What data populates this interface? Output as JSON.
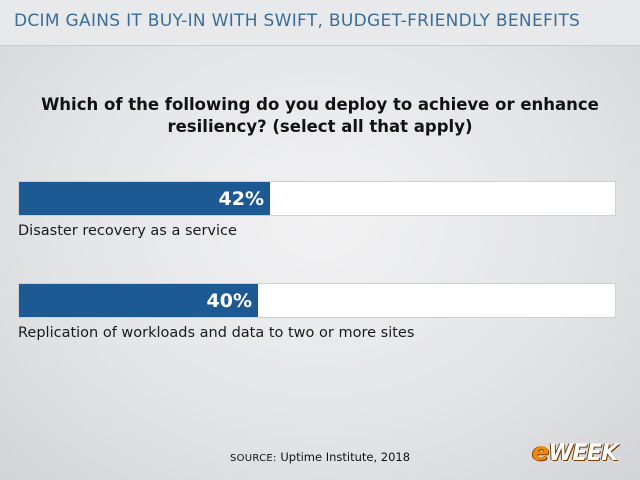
{
  "header": {
    "title": "DCIM GAINS IT BUY-IN WITH SWIFT, BUDGET-FRIENDLY BENEFITS"
  },
  "colors": {
    "bar_fill": "#1d5a93",
    "header_text": "#3a6d9c",
    "logo_accent": "#f28a00"
  },
  "chart_data": {
    "type": "bar",
    "orientation": "horizontal",
    "title": "Which of the following do you deploy to achieve or enhance resiliency? (select all that apply)",
    "categories": [
      "Disaster recovery as a service",
      "Replication of workloads and data to two or more sites"
    ],
    "values": [
      42,
      40
    ],
    "value_labels": [
      "42%",
      "40%"
    ],
    "unit": "%",
    "xlim": [
      0,
      100
    ],
    "grid": false,
    "legend": "none"
  },
  "source": {
    "prefix": "SOURCE:",
    "text": "Uptime Institute, 2018"
  },
  "logo": {
    "e": "e",
    "rest": "WEEK"
  }
}
